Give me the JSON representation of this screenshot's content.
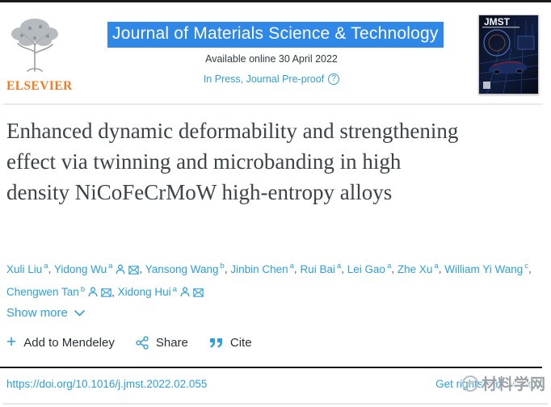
{
  "header": {
    "publisher": "ELSEVIER",
    "journal_title": "Journal of Materials Science & Technology",
    "available_online": "Available online 30 April 2022",
    "status_label": "In Press, Journal Pre-proof",
    "status_help_glyph": "?",
    "cover_label": "JMST"
  },
  "article": {
    "title": "Enhanced dynamic deformability and strengthening effect via twinning and microbanding in high density NiCoFeCrMoW high-entropy alloys",
    "authors": [
      {
        "name": "Xuli Liu",
        "sup": "a",
        "person": false,
        "email": false
      },
      {
        "name": "Yidong Wu",
        "sup": "a",
        "person": true,
        "email": true
      },
      {
        "name": "Yansong Wang",
        "sup": "b",
        "person": false,
        "email": false
      },
      {
        "name": "Jinbin Chen",
        "sup": "a",
        "person": false,
        "email": false
      },
      {
        "name": "Rui Bai",
        "sup": "a",
        "person": false,
        "email": false
      },
      {
        "name": "Lei Gao",
        "sup": "a",
        "person": false,
        "email": false
      },
      {
        "name": "Zhe Xu",
        "sup": "a",
        "person": false,
        "email": false
      },
      {
        "name": "William Yi Wang",
        "sup": "c",
        "person": false,
        "email": false
      },
      {
        "name": "Chengwen Tan",
        "sup": "b",
        "person": true,
        "email": true
      },
      {
        "name": "Xidong Hui",
        "sup": "a",
        "person": true,
        "email": true
      }
    ],
    "show_more_label": "Show more"
  },
  "actions": {
    "mendeley_plus_glyph": "+",
    "mendeley_label": "Add to Mendeley",
    "share_label": "Share",
    "cite_label": "Cite"
  },
  "footer": {
    "doi": "https://doi.org/10.1016/j.jmst.2022.02.055",
    "rights_label": "Get rights and content",
    "watermark_text": "材料学网"
  },
  "colors": {
    "link_blue": "#2d9edb",
    "selection_highlight_blue": "#2f88e8",
    "elsevier_orange": "#f47a21",
    "title_text": "#3d434b"
  }
}
